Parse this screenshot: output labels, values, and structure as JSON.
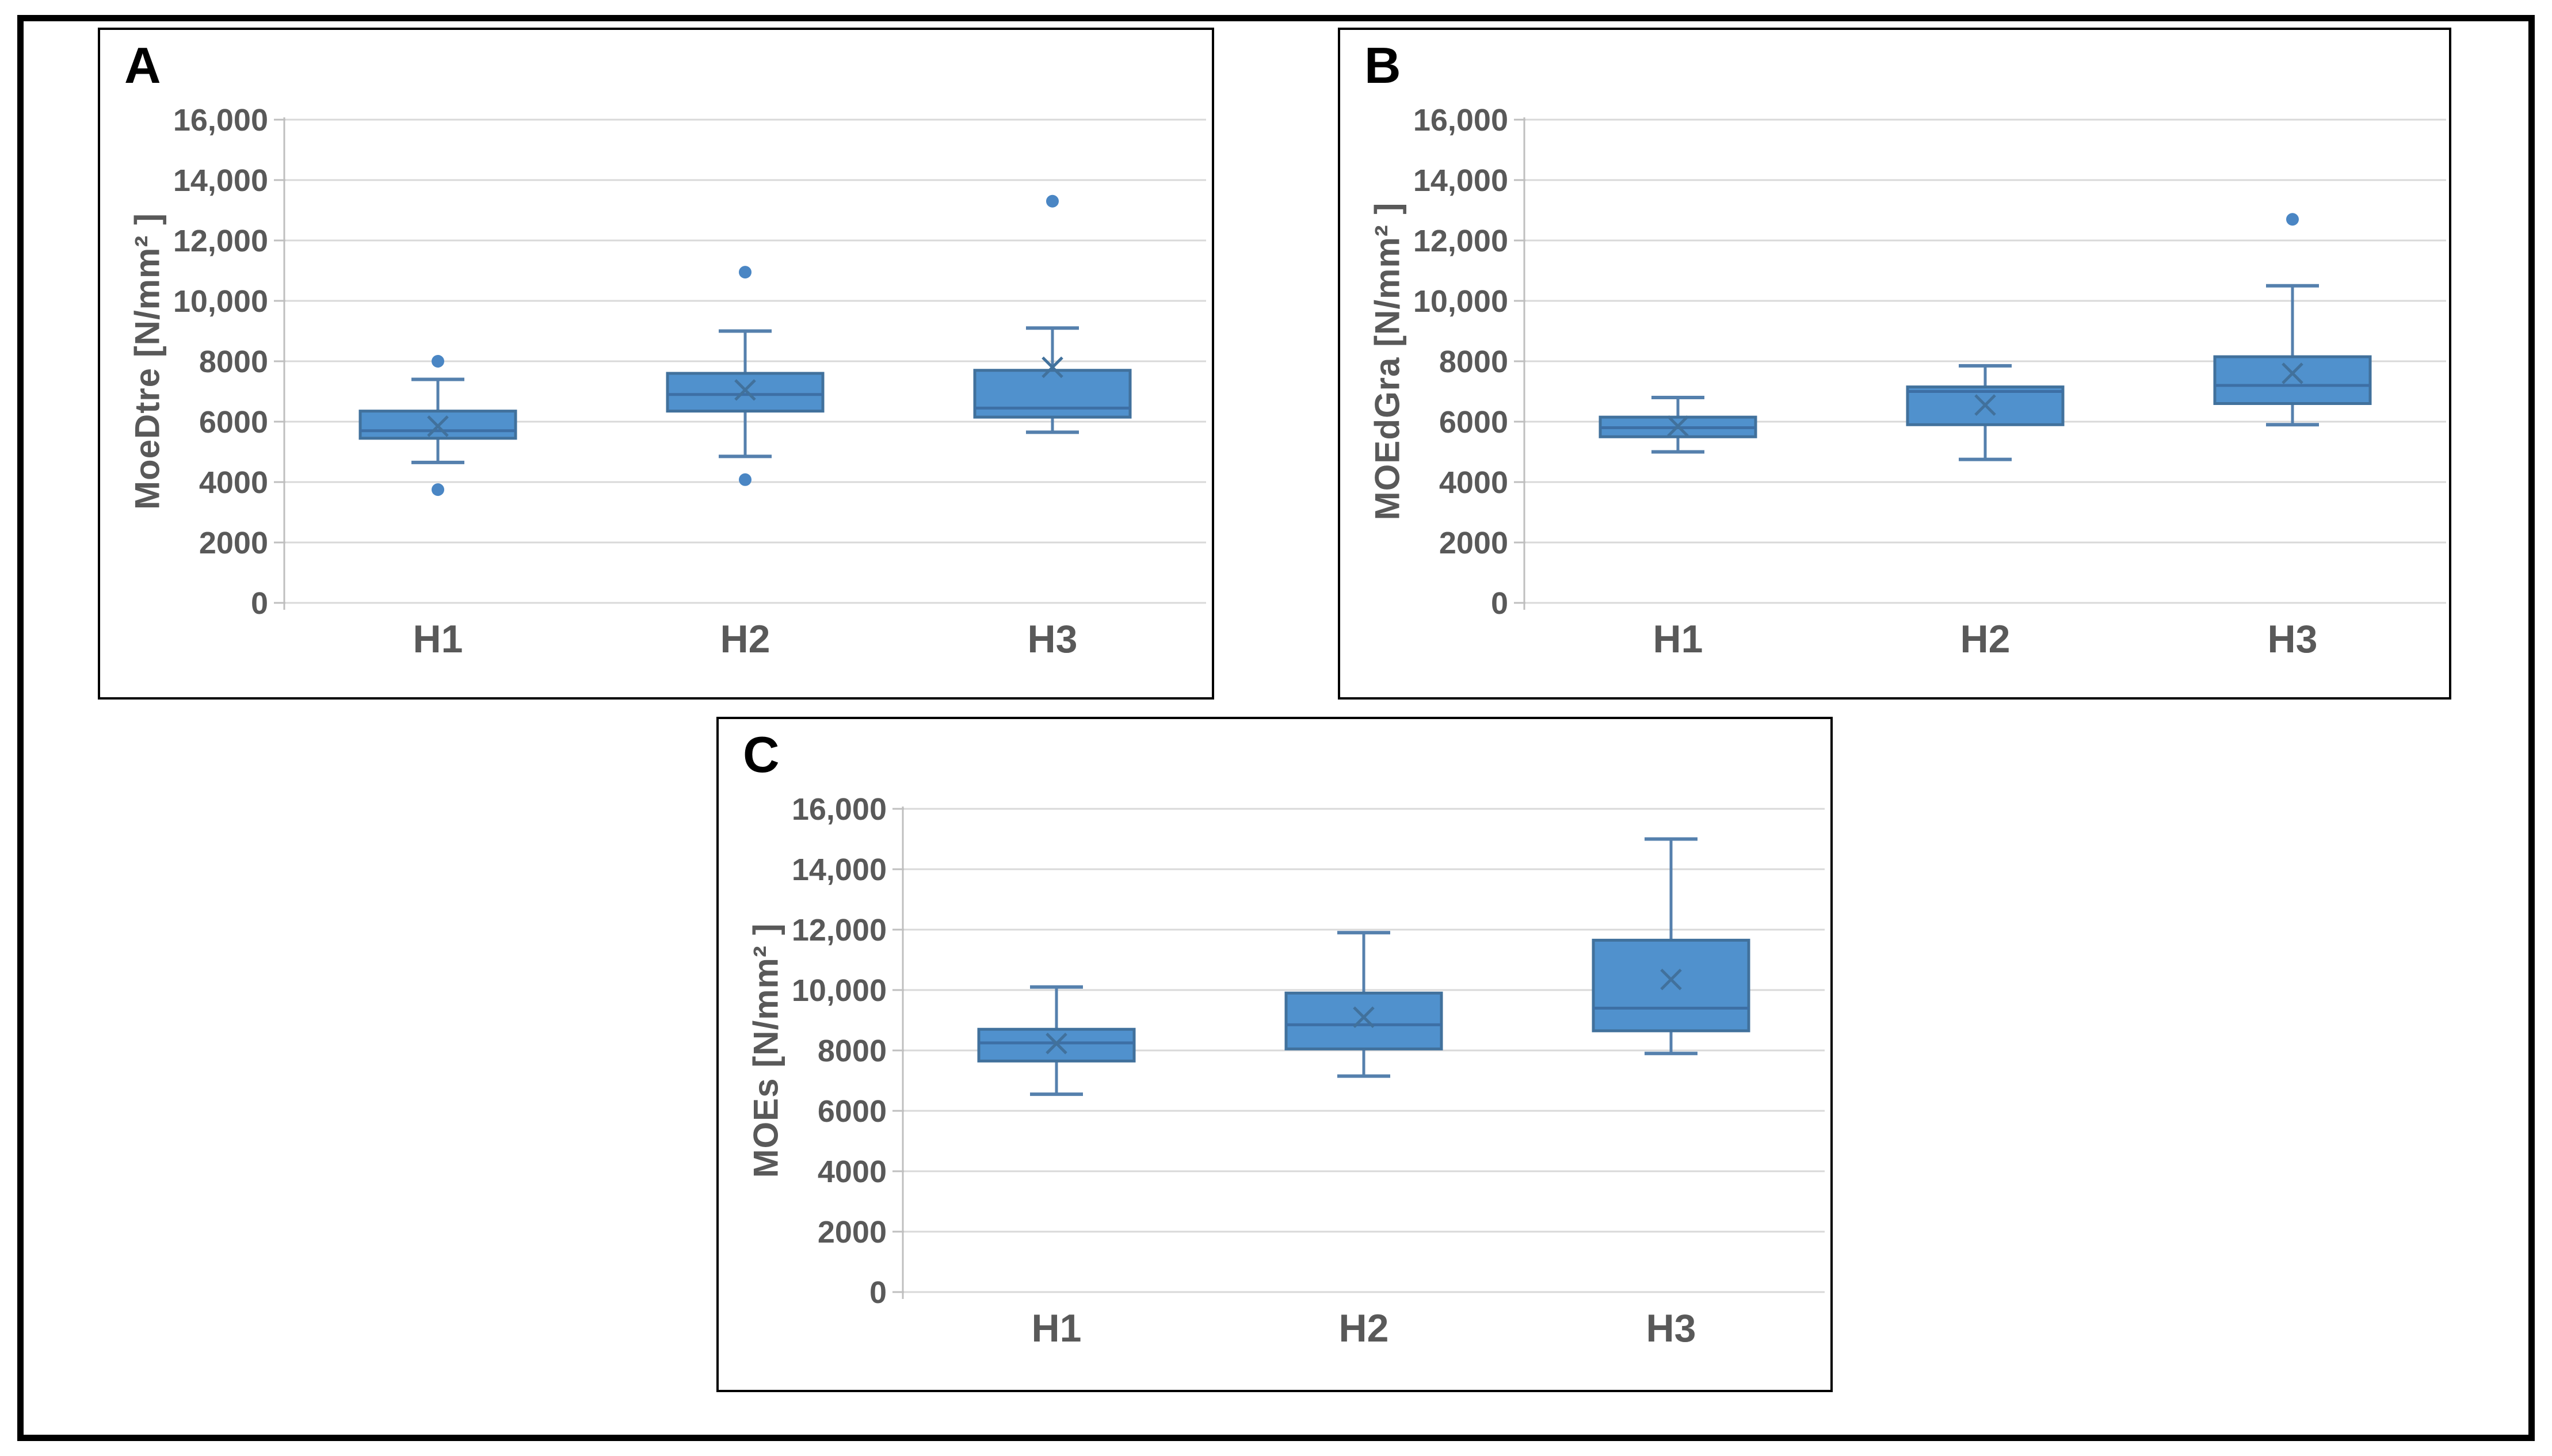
{
  "figure": {
    "background": "#ffffff",
    "outer_border_color": "#000000",
    "panel_border_color": "#000000"
  },
  "style": {
    "box_fill": "#5091CD",
    "box_stroke": "#41719C",
    "whisker_stroke": "#5580AD",
    "median_stroke": "#3D6FA5",
    "mean_stroke": "#41719C",
    "outlier_fill": "#4A86C4",
    "gridline": "#D9D9D9",
    "axis_line": "#BFBFBF",
    "tick_label_color": "#595959",
    "category_label_color": "#595959",
    "panel_letter_color": "#000000"
  },
  "chart_data": [
    {
      "type": "box",
      "panel_label": "A",
      "ylabel": "MoeDtre [N/mm² ]",
      "xlabel": "",
      "ylim": [
        0,
        16000
      ],
      "grid": true,
      "legend": "none",
      "ytick_values": [
        0,
        2000,
        4000,
        6000,
        8000,
        10000,
        12000,
        14000,
        16000
      ],
      "ytick_labels": [
        "0",
        "2000",
        "4000",
        "6000",
        "8000",
        "10,000",
        "12,000",
        "14,000",
        "16,000"
      ],
      "categories": [
        "H1",
        "H2",
        "H3"
      ],
      "series": [
        {
          "category": "H1",
          "whisker_low": 4650,
          "q1": 5450,
          "median": 5700,
          "mean": 5850,
          "q3": 6350,
          "whisker_high": 7400,
          "outliers": [
            8000,
            3750
          ]
        },
        {
          "category": "H2",
          "whisker_low": 4850,
          "q1": 6350,
          "median": 6900,
          "mean": 7050,
          "q3": 7600,
          "whisker_high": 9000,
          "outliers": [
            10950,
            4080
          ]
        },
        {
          "category": "H3",
          "whisker_low": 5650,
          "q1": 6150,
          "median": 6450,
          "mean": 7800,
          "q3": 7700,
          "whisker_high": 9100,
          "outliers": [
            13300
          ]
        }
      ]
    },
    {
      "type": "box",
      "panel_label": "B",
      "ylabel": "MOEdGra [N/mm² ]",
      "xlabel": "",
      "ylim": [
        0,
        16000
      ],
      "grid": true,
      "legend": "none",
      "ytick_values": [
        0,
        2000,
        4000,
        6000,
        8000,
        10000,
        12000,
        14000,
        16000
      ],
      "ytick_labels": [
        "0",
        "2000",
        "4000",
        "6000",
        "8000",
        "10,000",
        "12,000",
        "14,000",
        "16,000"
      ],
      "categories": [
        "H1",
        "H2",
        "H3"
      ],
      "series": [
        {
          "category": "H1",
          "whisker_low": 5000,
          "q1": 5500,
          "median": 5800,
          "mean": 5850,
          "q3": 6150,
          "whisker_high": 6800,
          "outliers": []
        },
        {
          "category": "H2",
          "whisker_low": 4750,
          "q1": 5900,
          "median": 7000,
          "mean": 6550,
          "q3": 7150,
          "whisker_high": 7850,
          "outliers": []
        },
        {
          "category": "H3",
          "whisker_low": 5900,
          "q1": 6600,
          "median": 7200,
          "mean": 7600,
          "q3": 8150,
          "whisker_high": 10500,
          "outliers": [
            12700
          ]
        }
      ]
    },
    {
      "type": "box",
      "panel_label": "C",
      "ylabel": "MOEs  [N/mm² ]",
      "xlabel": "",
      "ylim": [
        0,
        16000
      ],
      "grid": true,
      "legend": "none",
      "ytick_values": [
        0,
        2000,
        4000,
        6000,
        8000,
        10000,
        12000,
        14000,
        16000
      ],
      "ytick_labels": [
        "0",
        "2000",
        "4000",
        "6000",
        "8000",
        "10,000",
        "12,000",
        "14,000",
        "16,000"
      ],
      "categories": [
        "H1",
        "H2",
        "H3"
      ],
      "series": [
        {
          "category": "H1",
          "whisker_low": 6550,
          "q1": 7650,
          "median": 8250,
          "mean": 8230,
          "q3": 8700,
          "whisker_high": 10100,
          "outliers": []
        },
        {
          "category": "H2",
          "whisker_low": 7150,
          "q1": 8050,
          "median": 8850,
          "mean": 9100,
          "q3": 9900,
          "whisker_high": 11900,
          "outliers": []
        },
        {
          "category": "H3",
          "whisker_low": 7900,
          "q1": 8650,
          "median": 9400,
          "mean": 10350,
          "q3": 11650,
          "whisker_high": 15000,
          "outliers": []
        }
      ]
    }
  ]
}
